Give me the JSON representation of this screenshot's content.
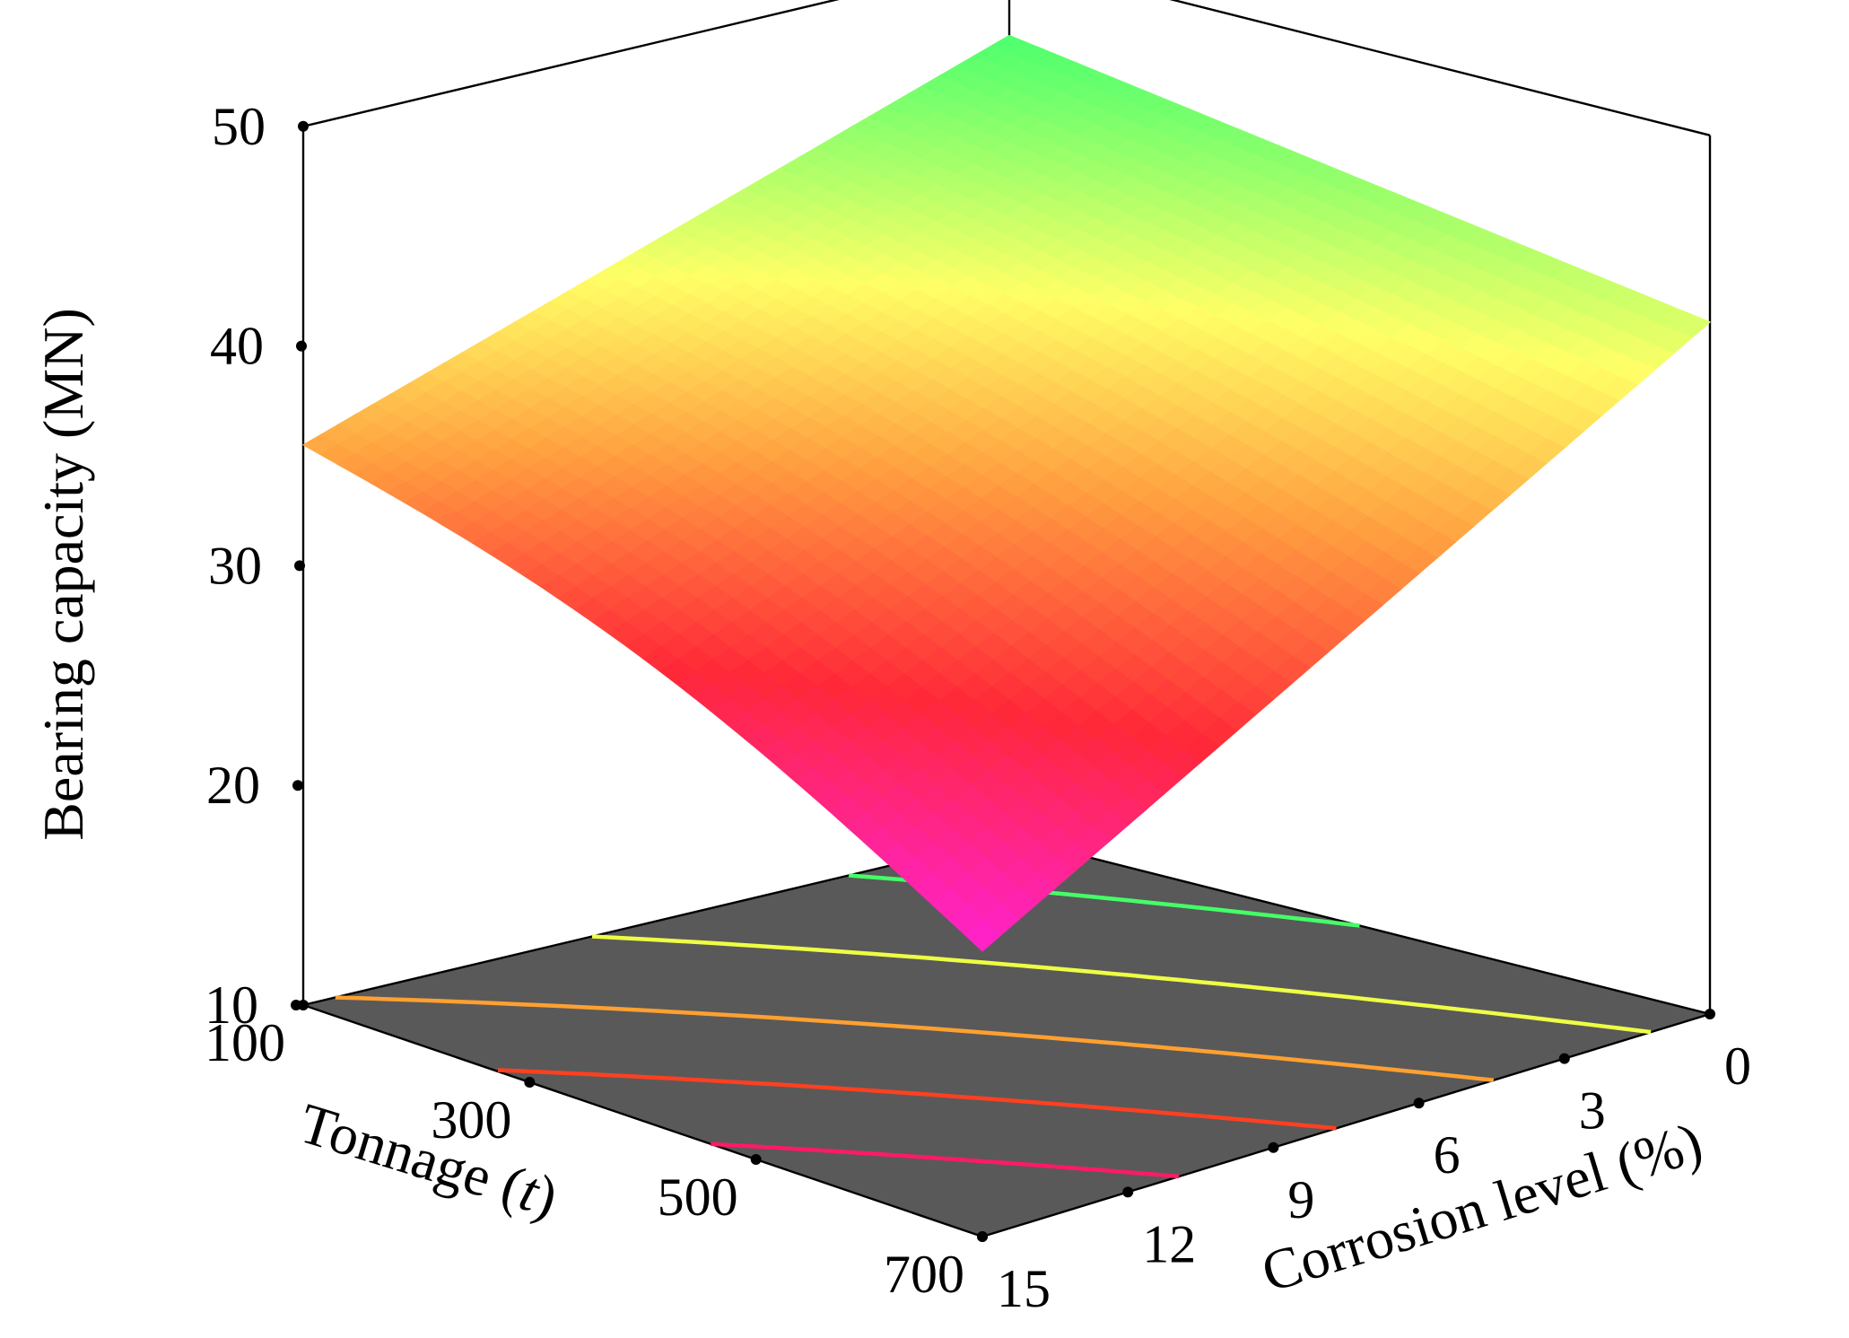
{
  "chart_data": {
    "type": "surface3d",
    "title": "",
    "zlabel": "Bearing capacity (MN)",
    "xlabel": {
      "text": "Tonnage (",
      "italic": "t",
      "close": ")"
    },
    "ylabel": "Corrosion level (%)",
    "x_ticks": [
      "100",
      "300",
      "500",
      "700"
    ],
    "y_ticks": [
      "0",
      "3",
      "6",
      "9",
      "12",
      "15"
    ],
    "z_ticks": [
      "10",
      "20",
      "30",
      "40",
      "50"
    ],
    "x_range": [
      100,
      700
    ],
    "y_range": [
      0,
      15
    ],
    "z_range": [
      10,
      50
    ],
    "floor_color": "#595959",
    "corners": [
      {
        "tonnage": 100,
        "corrosion": 0,
        "capacity": 46.5
      },
      {
        "tonnage": 700,
        "corrosion": 0,
        "capacity": 41.5
      },
      {
        "tonnage": 100,
        "corrosion": 15,
        "capacity": 35.5
      },
      {
        "tonnage": 700,
        "corrosion": 15,
        "capacity": 23.0
      }
    ],
    "colormap": [
      {
        "value": 23,
        "color": "#ff22d0"
      },
      {
        "value": 29,
        "color": "#ff2838"
      },
      {
        "value": 35,
        "color": "#ffa040"
      },
      {
        "value": 40,
        "color": "#ffff66"
      },
      {
        "value": 46.5,
        "color": "#4cff6e"
      }
    ],
    "contours": [
      {
        "level": 28,
        "color": "#ff1a66"
      },
      {
        "level": 32,
        "color": "#ff4020"
      },
      {
        "level": 36,
        "color": "#ffa030"
      },
      {
        "level": 40,
        "color": "#eeff44"
      },
      {
        "level": 44,
        "color": "#44ff66"
      }
    ]
  }
}
